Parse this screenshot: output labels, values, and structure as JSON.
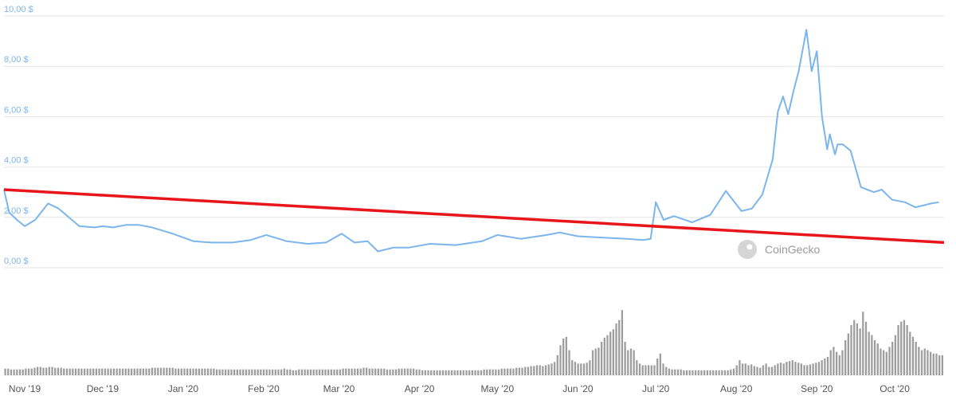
{
  "chart_data": {
    "type": "line",
    "title": "",
    "price_series": {
      "x": [
        "2019-10-24",
        "2019-10-26",
        "2019-10-29",
        "2019-11-01",
        "2019-11-05",
        "2019-11-10",
        "2019-11-14",
        "2019-11-18",
        "2019-11-22",
        "2019-11-28",
        "2019-12-01",
        "2019-12-05",
        "2019-12-10",
        "2019-12-15",
        "2019-12-20",
        "2019-12-28",
        "2020-01-05",
        "2020-01-12",
        "2020-01-20",
        "2020-01-27",
        "2020-02-02",
        "2020-02-10",
        "2020-02-18",
        "2020-02-25",
        "2020-03-02",
        "2020-03-07",
        "2020-03-12",
        "2020-03-16",
        "2020-03-22",
        "2020-03-28",
        "2020-04-05",
        "2020-04-15",
        "2020-04-25",
        "2020-05-01",
        "2020-05-10",
        "2020-05-20",
        "2020-05-25",
        "2020-06-01",
        "2020-06-10",
        "2020-06-20",
        "2020-06-26",
        "2020-06-29",
        "2020-07-01",
        "2020-07-04",
        "2020-07-08",
        "2020-07-15",
        "2020-07-22",
        "2020-07-28",
        "2020-08-03",
        "2020-08-07",
        "2020-08-11",
        "2020-08-15",
        "2020-08-17",
        "2020-08-19",
        "2020-08-21",
        "2020-08-23",
        "2020-08-25",
        "2020-08-28",
        "2020-08-30",
        "2020-09-01",
        "2020-09-03",
        "2020-09-05",
        "2020-09-06",
        "2020-09-08",
        "2020-09-09",
        "2020-09-11",
        "2020-09-14",
        "2020-09-18",
        "2020-09-23",
        "2020-09-26",
        "2020-09-30",
        "2020-10-05",
        "2020-10-09",
        "2020-10-13",
        "2020-10-15",
        "2020-10-18"
      ],
      "y": [
        3.1,
        2.2,
        1.9,
        1.65,
        1.9,
        2.55,
        2.35,
        2.0,
        1.65,
        1.6,
        1.65,
        1.6,
        1.7,
        1.7,
        1.6,
        1.35,
        1.05,
        1.0,
        1.0,
        1.1,
        1.3,
        1.05,
        0.95,
        1.0,
        1.35,
        1.0,
        1.05,
        0.65,
        0.8,
        0.8,
        0.95,
        0.9,
        1.05,
        1.3,
        1.15,
        1.3,
        1.4,
        1.25,
        1.2,
        1.15,
        1.1,
        1.15,
        2.6,
        1.9,
        2.05,
        1.8,
        2.1,
        3.05,
        2.25,
        2.35,
        2.9,
        4.3,
        6.2,
        6.8,
        6.1,
        7.0,
        7.8,
        9.45,
        7.8,
        8.6,
        6.0,
        4.7,
        5.3,
        4.5,
        4.9,
        4.9,
        4.65,
        3.2,
        3.0,
        3.1,
        2.7,
        2.6,
        2.4,
        2.5,
        2.55,
        2.6
      ]
    },
    "trendline": {
      "x": [
        "2019-10-24",
        "2020-10-20"
      ],
      "y": [
        3.1,
        1.0
      ]
    },
    "volume_series": [
      0.08,
      0.08,
      0.07,
      0.07,
      0.07,
      0.07,
      0.07,
      0.08,
      0.08,
      0.08,
      0.09,
      0.1,
      0.1,
      0.09,
      0.09,
      0.1,
      0.1,
      0.09,
      0.09,
      0.09,
      0.08,
      0.08,
      0.08,
      0.08,
      0.08,
      0.08,
      0.08,
      0.08,
      0.08,
      0.08,
      0.08,
      0.08,
      0.08,
      0.08,
      0.08,
      0.08,
      0.08,
      0.08,
      0.08,
      0.08,
      0.08,
      0.08,
      0.08,
      0.08,
      0.08,
      0.08,
      0.08,
      0.08,
      0.08,
      0.08,
      0.09,
      0.09,
      0.09,
      0.09,
      0.09,
      0.09,
      0.09,
      0.09,
      0.08,
      0.08,
      0.08,
      0.08,
      0.08,
      0.08,
      0.08,
      0.08,
      0.08,
      0.08,
      0.08,
      0.08,
      0.08,
      0.08,
      0.07,
      0.07,
      0.07,
      0.07,
      0.07,
      0.07,
      0.07,
      0.07,
      0.07,
      0.07,
      0.07,
      0.07,
      0.07,
      0.07,
      0.07,
      0.07,
      0.07,
      0.07,
      0.07,
      0.07,
      0.07,
      0.07,
      0.07,
      0.08,
      0.07,
      0.07,
      0.06,
      0.06,
      0.07,
      0.07,
      0.07,
      0.07,
      0.07,
      0.07,
      0.07,
      0.07,
      0.07,
      0.07,
      0.07,
      0.07,
      0.07,
      0.07,
      0.07,
      0.08,
      0.08,
      0.08,
      0.08,
      0.08,
      0.08,
      0.08,
      0.09,
      0.09,
      0.08,
      0.08,
      0.08,
      0.08,
      0.08,
      0.08,
      0.07,
      0.07,
      0.07,
      0.07,
      0.08,
      0.08,
      0.08,
      0.08,
      0.08,
      0.08,
      0.07,
      0.07,
      0.06,
      0.06,
      0.06,
      0.06,
      0.06,
      0.06,
      0.06,
      0.06,
      0.06,
      0.06,
      0.06,
      0.06,
      0.06,
      0.06,
      0.06,
      0.06,
      0.06,
      0.06,
      0.06,
      0.06,
      0.06,
      0.07,
      0.07,
      0.07,
      0.07,
      0.07,
      0.07,
      0.08,
      0.08,
      0.08,
      0.08,
      0.08,
      0.09,
      0.09,
      0.09,
      0.1,
      0.1,
      0.11,
      0.11,
      0.12,
      0.12,
      0.11,
      0.12,
      0.13,
      0.14,
      0.16,
      0.24,
      0.36,
      0.44,
      0.46,
      0.3,
      0.18,
      0.16,
      0.14,
      0.14,
      0.14,
      0.15,
      0.18,
      0.3,
      0.32,
      0.33,
      0.4,
      0.45,
      0.48,
      0.52,
      0.55,
      0.62,
      0.66,
      0.78,
      0.4,
      0.3,
      0.32,
      0.3,
      0.18,
      0.14,
      0.12,
      0.12,
      0.12,
      0.12,
      0.12,
      0.2,
      0.26,
      0.14,
      0.1,
      0.08,
      0.07,
      0.07,
      0.07,
      0.07,
      0.06,
      0.06,
      0.06,
      0.06,
      0.06,
      0.06,
      0.06,
      0.06,
      0.06,
      0.06,
      0.06,
      0.06,
      0.06,
      0.06,
      0.06,
      0.06,
      0.07,
      0.08,
      0.12,
      0.18,
      0.14,
      0.14,
      0.12,
      0.13,
      0.11,
      0.1,
      0.09,
      0.12,
      0.14,
      0.1,
      0.1,
      0.12,
      0.14,
      0.15,
      0.14,
      0.16,
      0.17,
      0.18,
      0.16,
      0.15,
      0.14,
      0.12,
      0.12,
      0.13,
      0.14,
      0.15,
      0.16,
      0.18,
      0.2,
      0.22,
      0.3,
      0.34,
      0.28,
      0.24,
      0.3,
      0.42,
      0.5,
      0.6,
      0.66,
      0.62,
      0.56,
      0.76,
      0.64,
      0.52,
      0.48,
      0.42,
      0.38,
      0.32,
      0.3,
      0.28,
      0.34,
      0.4,
      0.48,
      0.6,
      0.64,
      0.66,
      0.6,
      0.52,
      0.46,
      0.4,
      0.34,
      0.3,
      0.32,
      0.3,
      0.28,
      0.26,
      0.26,
      0.24,
      0.24
    ],
    "yticks": [
      {
        "value": 0,
        "label": "0,00 $"
      },
      {
        "value": 2,
        "label": "2,00 $"
      },
      {
        "value": 4,
        "label": "4,00 $"
      },
      {
        "value": 6,
        "label": "6,00 $"
      },
      {
        "value": 8,
        "label": "8,00 $"
      },
      {
        "value": 10,
        "label": "10,00 $"
      }
    ],
    "xticks": [
      {
        "date": "2019-11-01",
        "label": "Nov '19"
      },
      {
        "date": "2019-12-01",
        "label": "Dec '19"
      },
      {
        "date": "2020-01-01",
        "label": "Jan '20"
      },
      {
        "date": "2020-02-01",
        "label": "Feb '20"
      },
      {
        "date": "2020-03-01",
        "label": "Mar '20"
      },
      {
        "date": "2020-04-01",
        "label": "Apr '20"
      },
      {
        "date": "2020-05-01",
        "label": "May '20"
      },
      {
        "date": "2020-06-01",
        "label": "Jun '20"
      },
      {
        "date": "2020-07-01",
        "label": "Jul '20"
      },
      {
        "date": "2020-08-01",
        "label": "Aug '20"
      },
      {
        "date": "2020-09-01",
        "label": "Sep '20"
      },
      {
        "date": "2020-10-01",
        "label": "Oct '20"
      }
    ],
    "ylim": [
      0,
      10
    ],
    "xlim": [
      "2019-10-24",
      "2020-10-20"
    ],
    "grid": true,
    "colors": {
      "price_line": "#7cb5ec",
      "trendline": "#e8151b",
      "volume_bar": "#9e9e9e",
      "grid": "#e6e6e6",
      "ytick": "#7cb5ec"
    }
  },
  "watermark": {
    "text": "CoinGecko",
    "icon": "coingecko-gecko-icon"
  }
}
